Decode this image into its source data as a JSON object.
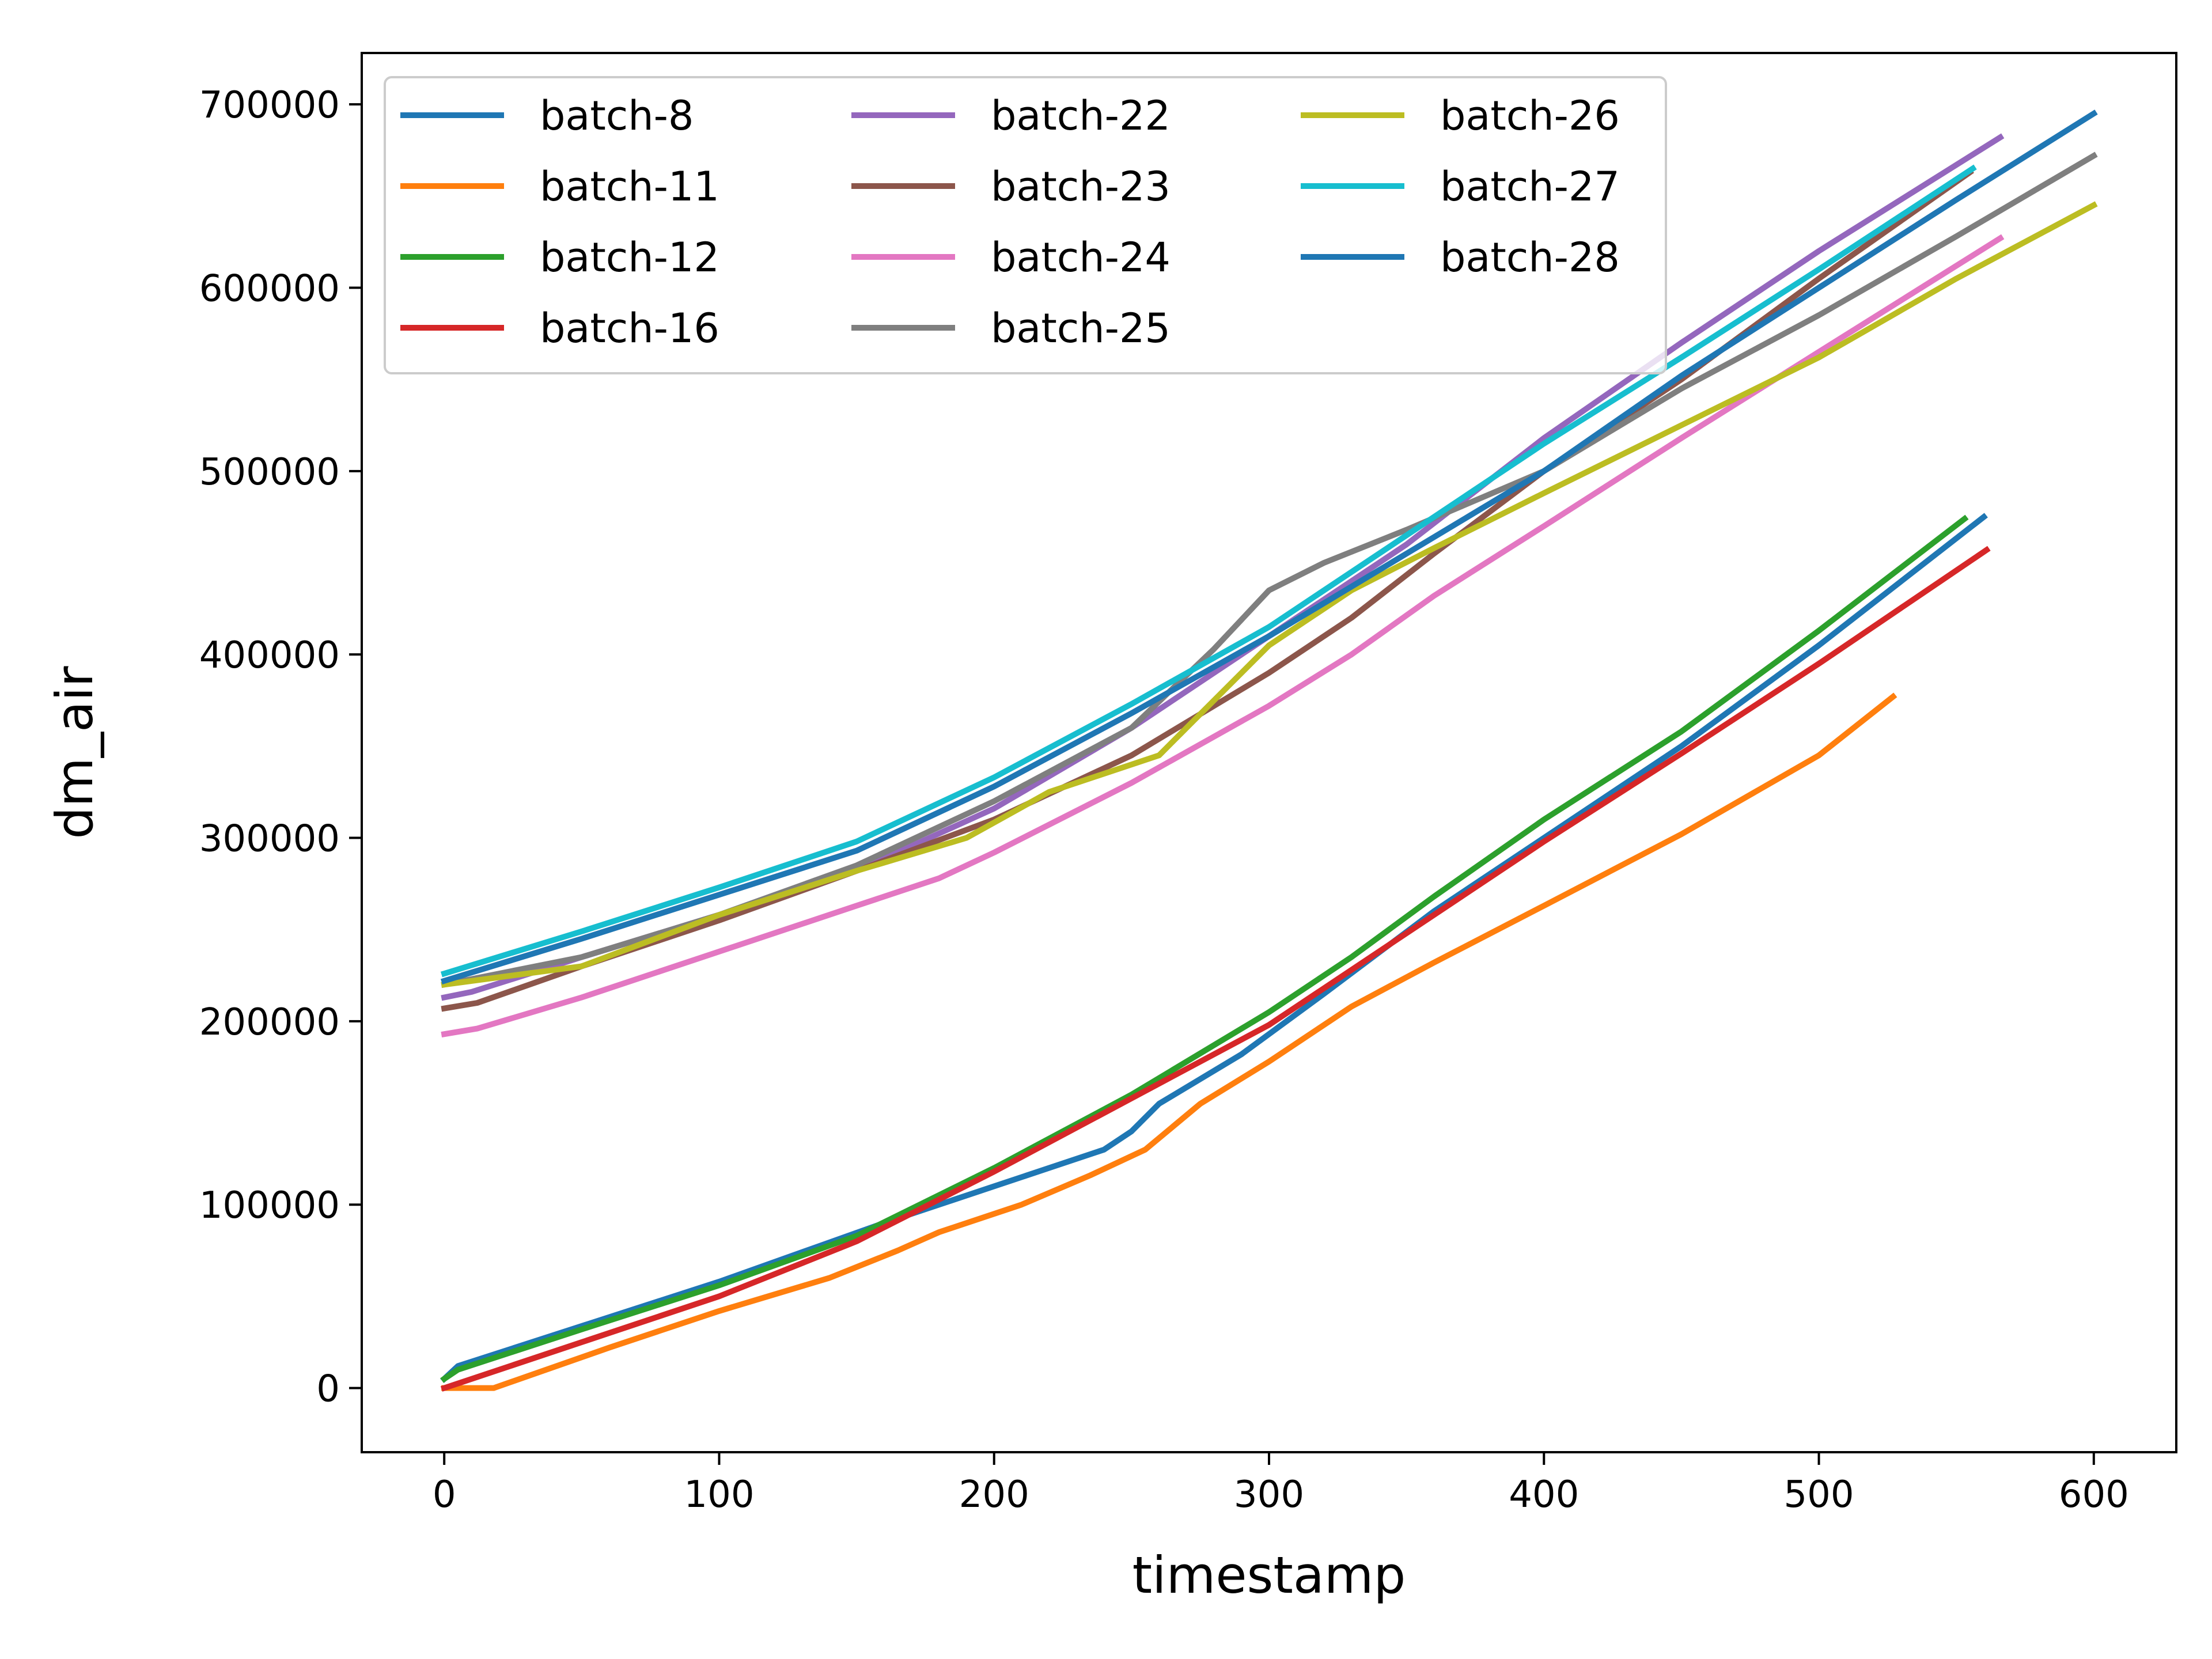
{
  "chart_data": {
    "type": "line",
    "title": "",
    "xlabel": "timestamp",
    "ylabel": "dm_air",
    "xlim": [
      -30,
      630
    ],
    "ylim": [
      -35000,
      728000
    ],
    "xticks": [
      0,
      100,
      200,
      300,
      400,
      500,
      600
    ],
    "yticks": [
      0,
      100000,
      200000,
      300000,
      400000,
      500000,
      600000,
      700000
    ],
    "grid": false,
    "legend": {
      "placement": "top-left",
      "columns": 3
    },
    "series": [
      {
        "name": "batch-8",
        "color": "#1f77b4",
        "x": [
          0,
          5,
          100,
          160,
          200,
          240,
          250,
          260,
          290,
          320,
          360,
          400,
          450,
          500,
          560
        ],
        "y": [
          5000,
          12000,
          58000,
          90000,
          110000,
          130000,
          140000,
          155000,
          182000,
          215000,
          260000,
          300000,
          350000,
          405000,
          475000
        ]
      },
      {
        "name": "batch-11",
        "color": "#ff7f0e",
        "x": [
          0,
          18,
          60,
          100,
          140,
          165,
          180,
          210,
          235,
          255,
          275,
          300,
          330,
          360,
          400,
          450,
          500,
          527
        ],
        "y": [
          0,
          0,
          22000,
          42000,
          60000,
          75000,
          85000,
          100000,
          116000,
          130000,
          155000,
          178000,
          208000,
          232000,
          263000,
          302000,
          345000,
          377000
        ]
      },
      {
        "name": "batch-12",
        "color": "#2ca02c",
        "x": [
          0,
          5,
          50,
          100,
          150,
          200,
          250,
          300,
          330,
          360,
          400,
          450,
          500,
          553
        ],
        "y": [
          5000,
          10000,
          32000,
          56000,
          83000,
          120000,
          160000,
          205000,
          235000,
          268000,
          310000,
          358000,
          413000,
          474000
        ]
      },
      {
        "name": "batch-16",
        "color": "#d62728",
        "x": [
          0,
          50,
          100,
          150,
          200,
          250,
          300,
          350,
          400,
          450,
          500,
          561
        ],
        "y": [
          0,
          25000,
          50000,
          80000,
          118000,
          158000,
          198000,
          248000,
          298000,
          346000,
          395000,
          457000
        ]
      },
      {
        "name": "batch-22",
        "color": "#9467bd",
        "x": [
          0,
          10,
          50,
          100,
          150,
          200,
          250,
          300,
          350,
          400,
          450,
          500,
          566
        ],
        "y": [
          213000,
          216000,
          235000,
          258000,
          282000,
          316000,
          360000,
          410000,
          460000,
          518000,
          570000,
          620000,
          682000
        ]
      },
      {
        "name": "batch-23",
        "color": "#8c564b",
        "x": [
          0,
          12,
          50,
          100,
          150,
          200,
          250,
          300,
          330,
          360,
          400,
          450,
          500,
          555
        ],
        "y": [
          207000,
          210000,
          230000,
          255000,
          282000,
          310000,
          345000,
          390000,
          420000,
          455000,
          500000,
          550000,
          605000,
          663000
        ]
      },
      {
        "name": "batch-24",
        "color": "#e377c2",
        "x": [
          0,
          12,
          50,
          100,
          150,
          180,
          200,
          250,
          300,
          330,
          360,
          400,
          450,
          500,
          566
        ],
        "y": [
          193000,
          196000,
          213000,
          238000,
          263000,
          278000,
          292000,
          330000,
          372000,
          400000,
          432000,
          470000,
          518000,
          565000,
          627000
        ]
      },
      {
        "name": "batch-25",
        "color": "#7f7f7f",
        "x": [
          0,
          50,
          100,
          150,
          200,
          250,
          280,
          300,
          320,
          350,
          400,
          450,
          500,
          550,
          600
        ],
        "y": [
          220000,
          235000,
          258000,
          285000,
          320000,
          360000,
          403000,
          435000,
          450000,
          468000,
          500000,
          545000,
          585000,
          628000,
          672000
        ]
      },
      {
        "name": "batch-26",
        "color": "#bcbd22",
        "x": [
          0,
          20,
          50,
          100,
          150,
          190,
          220,
          260,
          270,
          300,
          330,
          360,
          400,
          450,
          500,
          550,
          600
        ],
        "y": [
          220000,
          224000,
          230000,
          258000,
          282000,
          300000,
          325000,
          345000,
          360000,
          405000,
          435000,
          458000,
          488000,
          525000,
          562000,
          605000,
          645000
        ]
      },
      {
        "name": "batch-27",
        "color": "#17becf",
        "x": [
          0,
          50,
          100,
          150,
          200,
          250,
          300,
          350,
          400,
          450,
          500,
          556
        ],
        "y": [
          226000,
          249000,
          273000,
          298000,
          333000,
          373000,
          415000,
          465000,
          515000,
          562000,
          610000,
          665000
        ]
      },
      {
        "name": "batch-28",
        "color": "#1f77b4",
        "x": [
          0,
          50,
          100,
          150,
          200,
          250,
          300,
          350,
          400,
          450,
          500,
          550,
          600
        ],
        "y": [
          222000,
          245000,
          269000,
          293000,
          328000,
          368000,
          410000,
          455000,
          500000,
          552000,
          600000,
          648000,
          695000
        ]
      }
    ]
  }
}
